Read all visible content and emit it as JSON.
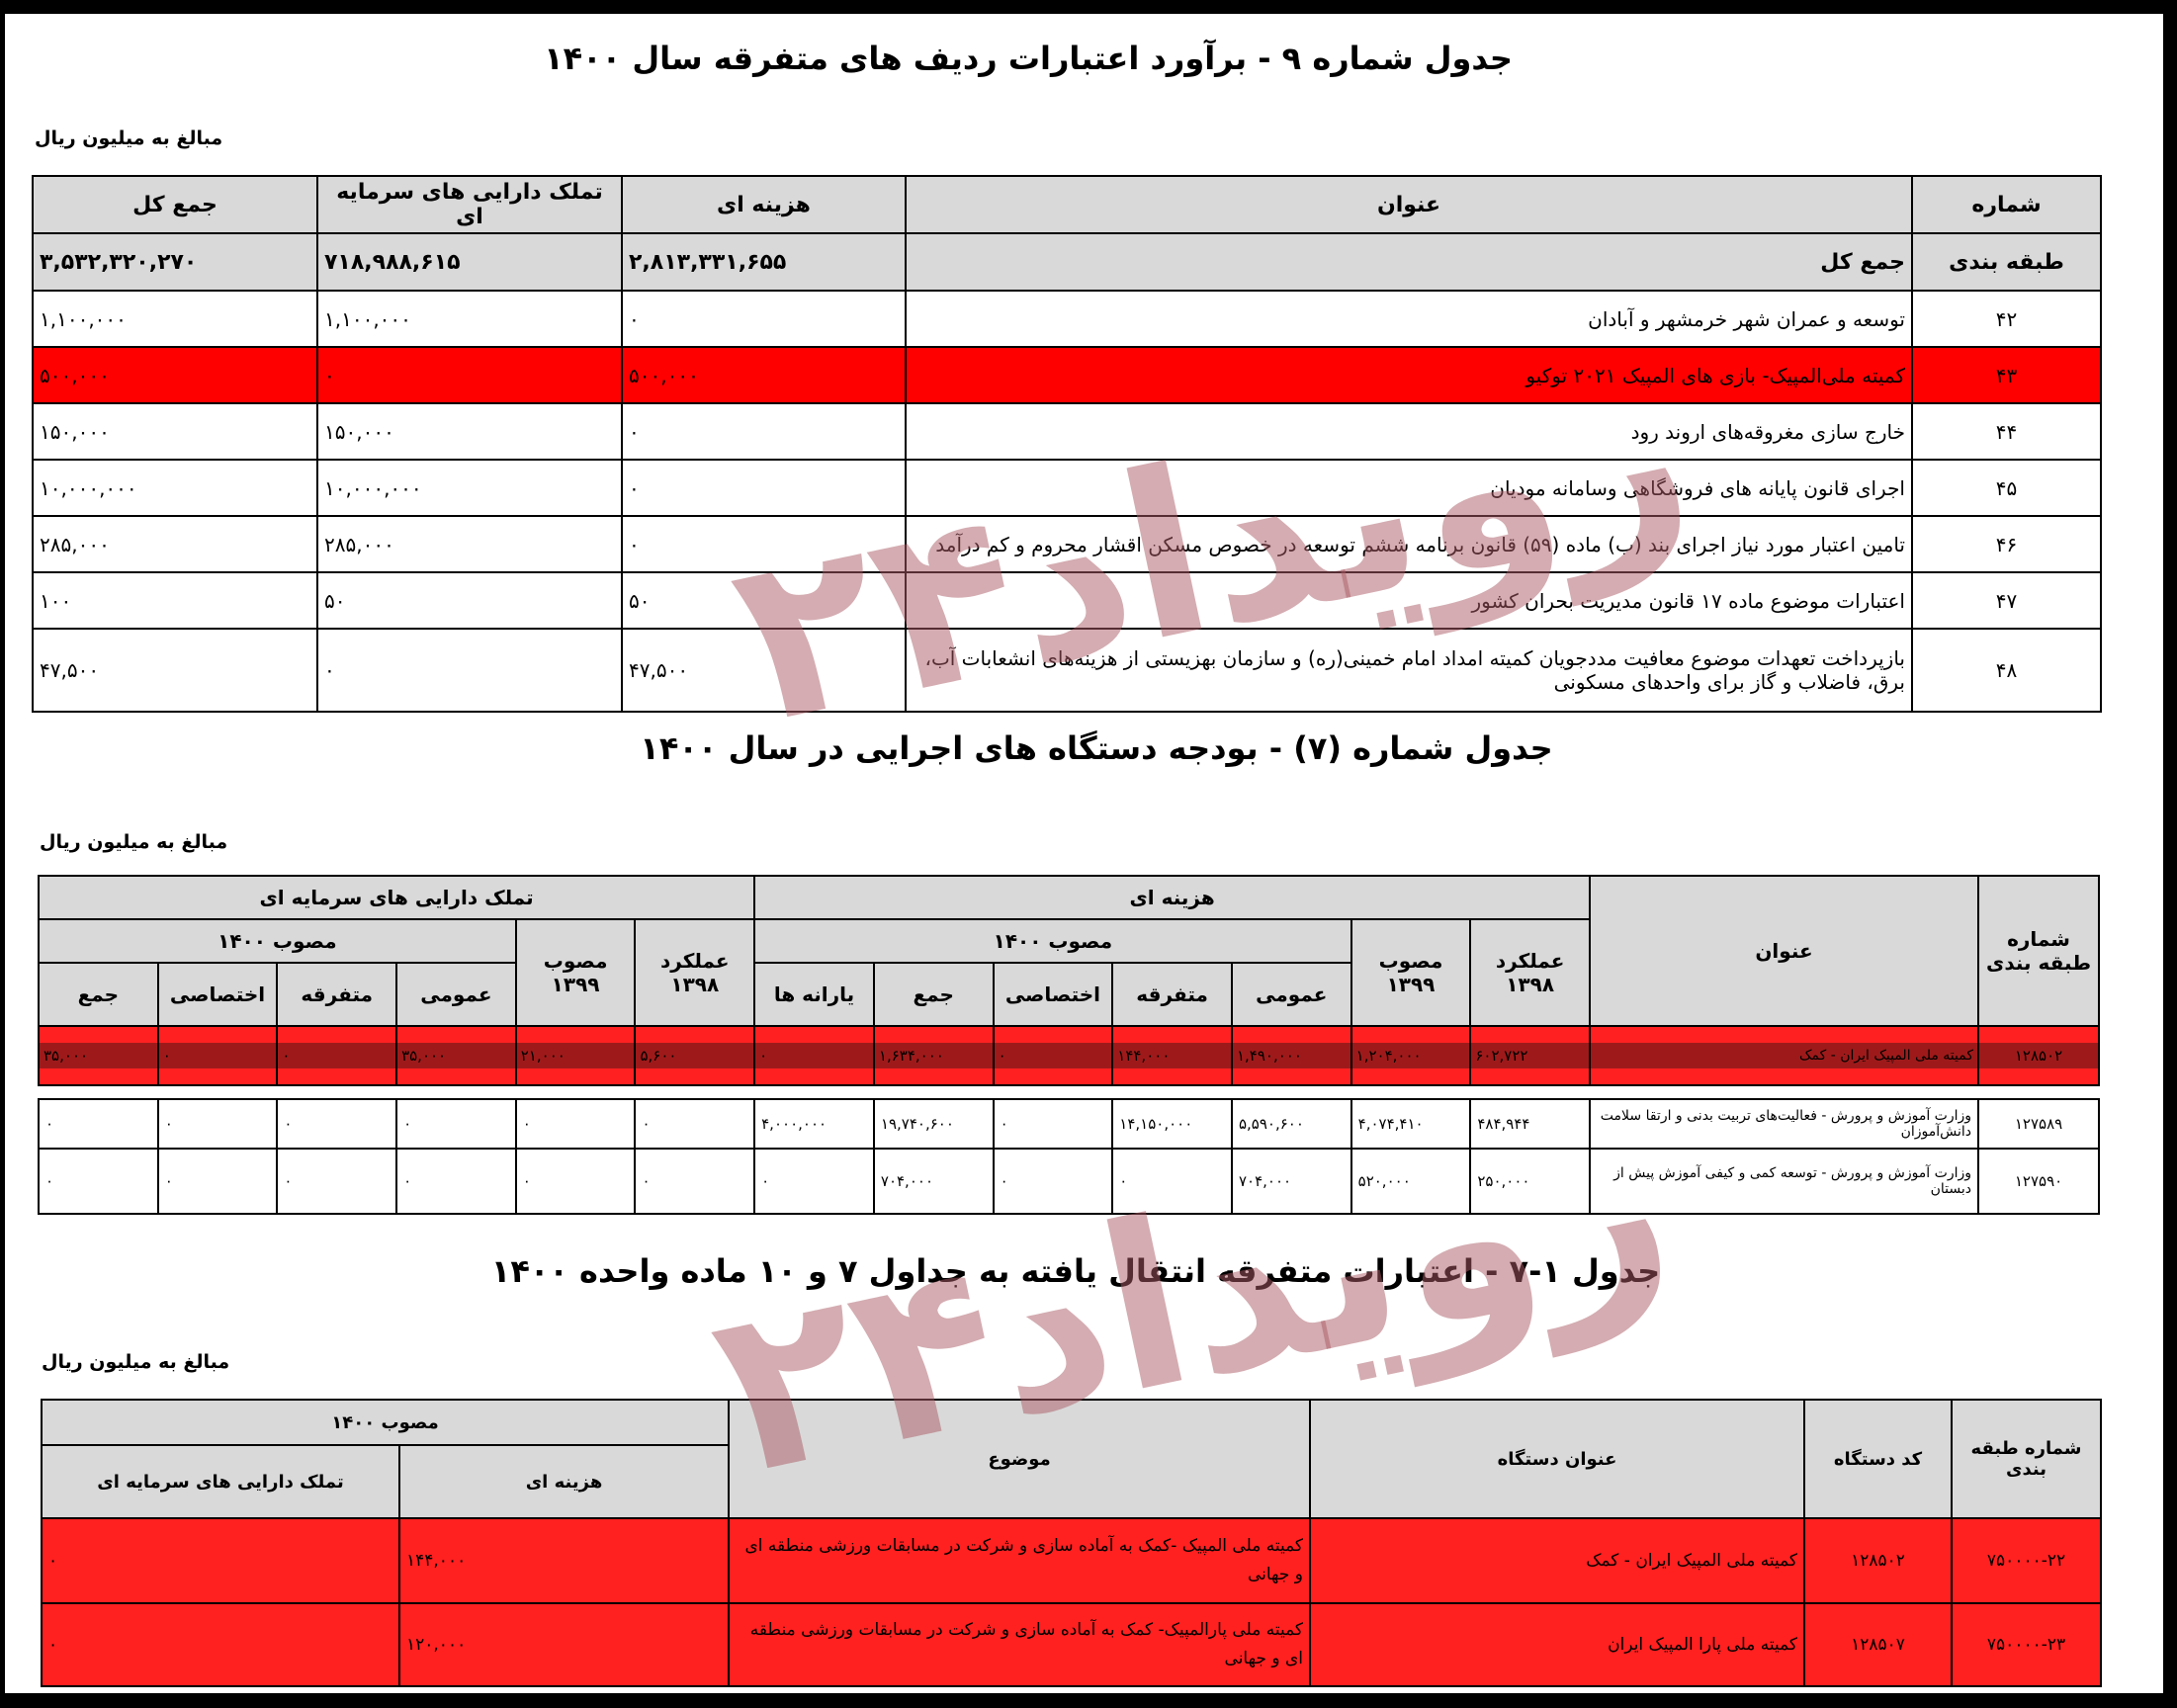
{
  "watermark": "رویداد۲۴",
  "colors": {
    "highlight_red": "#ff0000",
    "header_grey": "#d9d9d9",
    "watermark": "#c8a0a6"
  },
  "table1": {
    "title": "جدول شماره ۹ - برآورد اعتبارات ردیف های متفرقه سال ۱۴۰۰",
    "unit": "مبالغ به میلیون ریال",
    "headers": {
      "number": "شماره",
      "title": "عنوان",
      "current": "هزینه ای",
      "capital": "تملک دارایی های سرمایه ای",
      "total": "جمع کل"
    },
    "summary": {
      "number": "طبقه بندی",
      "title": "جمع کل",
      "current": "۲,۸۱۳,۳۳۱,۶۵۵",
      "capital": "۷۱۸,۹۸۸,۶۱۵",
      "total": "۳,۵۳۲,۳۲۰,۲۷۰"
    },
    "rows": [
      {
        "number": "۴۲",
        "title": "توسعه و عمران شهر خرمشهر و آبادان",
        "current": "۰",
        "capital": "۱,۱۰۰,۰۰۰",
        "total": "۱,۱۰۰,۰۰۰",
        "highlight": false
      },
      {
        "number": "۴۳",
        "title": "کمیته ملی‌المپیک- بازی های المپیک ۲۰۲۱ توکیو",
        "current": "۵۰۰,۰۰۰",
        "capital": "۰",
        "total": "۵۰۰,۰۰۰",
        "highlight": true
      },
      {
        "number": "۴۴",
        "title": "خارج سازی مغروقه‌های اروند رود",
        "current": "۰",
        "capital": "۱۵۰,۰۰۰",
        "total": "۱۵۰,۰۰۰",
        "highlight": false
      },
      {
        "number": "۴۵",
        "title": "اجرای قانون پایانه های فروشگاهی وسامانه مودیان",
        "current": "۰",
        "capital": "۱۰,۰۰۰,۰۰۰",
        "total": "۱۰,۰۰۰,۰۰۰",
        "highlight": false
      },
      {
        "number": "۴۶",
        "title": "تامین اعتبار مورد نیاز اجرای بند (ب) ماده (۵۹) قانون برنامه ششم توسعه در خصوص مسکن اقشار محروم و کم درآمد",
        "current": "۰",
        "capital": "۲۸۵,۰۰۰",
        "total": "۲۸۵,۰۰۰",
        "highlight": false
      },
      {
        "number": "۴۷",
        "title": "اعتبارات موضوع ماده ۱۷ قانون مدیریت بحران کشور",
        "current": "۵۰",
        "capital": "۵۰",
        "total": "۱۰۰",
        "highlight": false
      },
      {
        "number": "۴۸",
        "title": "بازپرداخت تعهدات موضوع معافیت مددجویان کمیته امداد امام خمینی(ره) و سازمان بهزیستی از هزینه‌های انشعابات آب، برق، فاضلاب و گاز برای واحدهای مسکونی",
        "current": "۴۷,۵۰۰",
        "capital": "۰",
        "total": "۴۷,۵۰۰",
        "highlight": false
      }
    ]
  },
  "table2": {
    "title": "جدول شماره (۷) - بودجه دستگاه های اجرایی در سال ۱۴۰۰",
    "unit": "مبالغ به میلیون ریال",
    "headers": {
      "number": "شماره طبقه بندی",
      "title": "عنوان",
      "current": "هزینه ای",
      "capital": "تملک دارایی های سرمایه ای",
      "actual_1398": "عملکرد ۱۳۹۸",
      "approved_1399": "مصوب ۱۳۹۹",
      "approved_1400": "مصوب ۱۴۰۰",
      "current_sub": [
        "عمومی",
        "متفرقه",
        "اختصاصی",
        "جمع",
        "یارانه ها"
      ],
      "capital_sub": [
        "عمومی",
        "متفرقه",
        "اختصاصی",
        "جمع"
      ]
    },
    "rows": [
      {
        "number": "۱۲۸۵۰۲",
        "title": "کمیته ملی المپیک ایران - کمک",
        "highlight": true,
        "values": [
          "۶۰۲,۷۲۲",
          "۱,۲۰۴,۰۰۰",
          "۱,۴۹۰,۰۰۰",
          "۱۴۴,۰۰۰",
          "۰",
          "۱,۶۳۴,۰۰۰",
          "۰",
          "۵,۶۰۰",
          "۲۱,۰۰۰",
          "۳۵,۰۰۰",
          "۰",
          "۰",
          "۳۵,۰۰۰"
        ]
      },
      {
        "number": "۱۲۷۵۸۹",
        "title": "وزارت آموزش و پرورش - فعالیت‌های تربیت بدنی و ارتقا سلامت دانش‌آموزان",
        "highlight": false,
        "values": [
          "۴۸۴,۹۴۴",
          "۴,۰۷۴,۴۱۰",
          "۵,۵۹۰,۶۰۰",
          "۱۴,۱۵۰,۰۰۰",
          "۰",
          "۱۹,۷۴۰,۶۰۰",
          "۴,۰۰۰,۰۰۰",
          "۰",
          "۰",
          "۰",
          "۰",
          "۰",
          "۰"
        ]
      },
      {
        "number": "۱۲۷۵۹۰",
        "title": "وزارت آموزش و پرورش - توسعه کمی و کیفی آموزش پیش از دبستان",
        "highlight": false,
        "values": [
          "۲۵۰,۰۰۰",
          "۵۲۰,۰۰۰",
          "۷۰۴,۰۰۰",
          "۰",
          "۰",
          "۷۰۴,۰۰۰",
          "۰",
          "۰",
          "۰",
          "۰",
          "۰",
          "۰",
          "۰"
        ]
      }
    ]
  },
  "table3": {
    "title": "جدول ۱-۷ - اعتبارات متفرقه انتقال یافته به جداول ۷ و ۱۰ ماده واحده ۱۴۰۰",
    "unit": "مبالغ به میلیون ریال",
    "headers": {
      "number": "شماره طبقه بندی",
      "code": "کد دستگاه",
      "agency": "عنوان دستگاه",
      "subject": "موضوع",
      "approved_1400": "مصوب ۱۴۰۰",
      "current": "هزینه ای",
      "capital": "تملک دارایی های سرمایه ای"
    },
    "rows": [
      {
        "number": "۷۵۰۰۰۰-۲۲",
        "code": "۱۲۸۵۰۲",
        "agency": "کمیته ملی المپیک ایران - کمک",
        "subject": "کمیته  ملی المپیک -کمک به آماده سازی و شرکت در مسابقات ورزشی منطقه ای و جهانی",
        "current": "۱۴۴,۰۰۰",
        "capital": "۰"
      },
      {
        "number": "۷۵۰۰۰۰-۲۳",
        "code": "۱۲۸۵۰۷",
        "agency": "کمیته ملی پارا المپیک ایران",
        "subject": "کمیته ملی پارالمپیک- کمک به آماده سازی و شرکت در مسابقات ورزشی منطقه ای و جهانی",
        "current": "۱۲۰,۰۰۰",
        "capital": "۰"
      }
    ]
  }
}
